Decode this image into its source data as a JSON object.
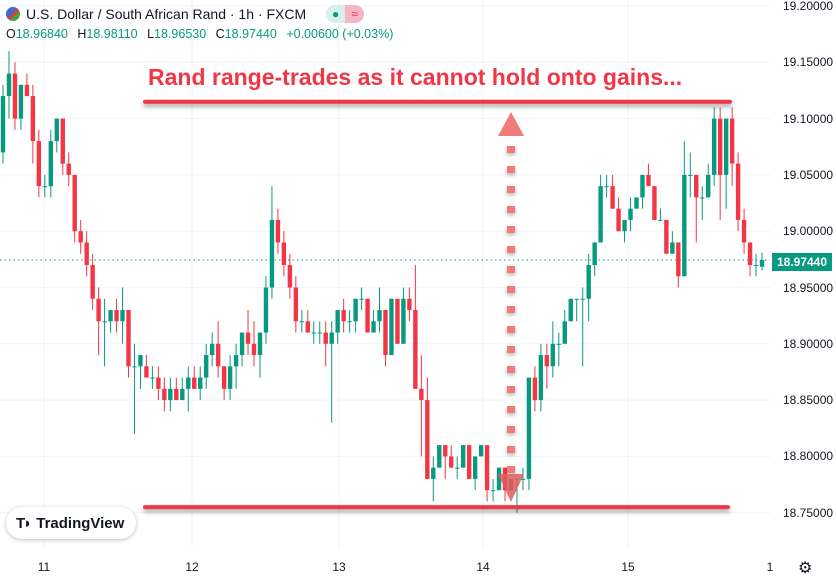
{
  "header": {
    "symbol_title": "U.S. Dollar / South African Rand · 1h · FXCM",
    "open_label": "O",
    "open": "18.96840",
    "high_label": "H",
    "high": "18.98110",
    "low_label": "L",
    "low": "18.96530",
    "close_label": "C",
    "close": "18.97440",
    "change": "+0.00600 (+0.03%)",
    "status_icon": "market-open-dot-icon",
    "pill_icon": "approx-icon"
  },
  "annotation": {
    "text": "Rand range-trades as it cannot hold onto gains...",
    "color": "#f23645"
  },
  "logo": {
    "text": "TradingView"
  },
  "colors": {
    "up": "#089981",
    "down": "#f23645",
    "grid": "#f0f3fa"
  },
  "chart_data": {
    "type": "candlestick",
    "ylim": [
      18.7,
      19.2
    ],
    "y_ticks": [
      "19.20000",
      "19.15000",
      "19.10000",
      "19.05000",
      "19.00000",
      "18.95000",
      "18.90000",
      "18.85000",
      "18.80000",
      "18.75000"
    ],
    "y_tick_values": [
      19.2,
      19.15,
      19.1,
      19.05,
      19.0,
      18.95,
      18.9,
      18.85,
      18.8,
      18.75
    ],
    "x_ticks": [
      "11",
      "12",
      "13",
      "14",
      "15",
      "1"
    ],
    "last_price": "18.97440",
    "resistance": 19.115,
    "support": 18.755,
    "ohlc": [
      [
        19.07,
        19.13,
        19.06,
        19.12
      ],
      [
        19.12,
        19.16,
        19.1,
        19.14
      ],
      [
        19.14,
        19.15,
        19.09,
        19.1
      ],
      [
        19.1,
        19.13,
        19.09,
        19.13
      ],
      [
        19.13,
        19.14,
        19.12,
        19.12
      ],
      [
        19.12,
        19.13,
        19.06,
        19.08
      ],
      [
        19.08,
        19.09,
        19.03,
        19.04
      ],
      [
        19.04,
        19.05,
        19.03,
        19.04
      ],
      [
        19.04,
        19.09,
        19.03,
        19.08
      ],
      [
        19.08,
        19.1,
        19.07,
        19.1
      ],
      [
        19.1,
        19.1,
        19.05,
        19.06
      ],
      [
        19.06,
        19.07,
        19.04,
        19.05
      ],
      [
        19.05,
        19.05,
        18.99,
        19.0
      ],
      [
        19.0,
        19.01,
        18.98,
        18.99
      ],
      [
        18.99,
        19.0,
        18.96,
        18.97
      ],
      [
        18.97,
        18.98,
        18.93,
        18.94
      ],
      [
        18.94,
        18.95,
        18.89,
        18.92
      ],
      [
        18.92,
        18.94,
        18.88,
        18.92
      ],
      [
        18.92,
        18.93,
        18.91,
        18.93
      ],
      [
        18.93,
        18.94,
        18.91,
        18.92
      ],
      [
        18.92,
        18.95,
        18.9,
        18.93
      ],
      [
        18.93,
        18.93,
        18.87,
        18.88
      ],
      [
        18.88,
        18.9,
        18.82,
        18.88
      ],
      [
        18.88,
        18.89,
        18.86,
        18.89
      ],
      [
        18.88,
        18.89,
        18.87,
        18.87
      ],
      [
        18.87,
        18.88,
        18.86,
        18.87
      ],
      [
        18.87,
        18.88,
        18.85,
        18.86
      ],
      [
        18.86,
        18.87,
        18.84,
        18.85
      ],
      [
        18.85,
        18.87,
        18.84,
        18.86
      ],
      [
        18.86,
        18.87,
        18.85,
        18.85
      ],
      [
        18.85,
        18.87,
        18.85,
        18.86
      ],
      [
        18.86,
        18.88,
        18.84,
        18.87
      ],
      [
        18.87,
        18.88,
        18.86,
        18.86
      ],
      [
        18.86,
        18.88,
        18.85,
        18.87
      ],
      [
        18.87,
        18.9,
        18.86,
        18.89
      ],
      [
        18.89,
        18.91,
        18.88,
        18.9
      ],
      [
        18.9,
        18.92,
        18.87,
        18.88
      ],
      [
        18.88,
        18.88,
        18.85,
        18.86
      ],
      [
        18.86,
        18.89,
        18.85,
        18.88
      ],
      [
        18.88,
        18.9,
        18.86,
        18.89
      ],
      [
        18.89,
        18.91,
        18.88,
        18.91
      ],
      [
        18.91,
        18.93,
        18.89,
        18.9
      ],
      [
        18.9,
        18.92,
        18.88,
        18.89
      ],
      [
        18.89,
        18.91,
        18.87,
        18.91
      ],
      [
        18.91,
        18.96,
        18.9,
        18.95
      ],
      [
        18.95,
        19.04,
        18.94,
        19.01
      ],
      [
        19.01,
        19.02,
        18.98,
        18.99
      ],
      [
        18.99,
        19.0,
        18.96,
        18.97
      ],
      [
        18.97,
        18.98,
        18.94,
        18.95
      ],
      [
        18.95,
        18.96,
        18.91,
        18.92
      ],
      [
        18.92,
        18.93,
        18.91,
        18.92
      ],
      [
        18.92,
        18.93,
        18.91,
        18.91
      ],
      [
        18.91,
        18.92,
        18.9,
        18.91
      ],
      [
        18.91,
        18.92,
        18.9,
        18.91
      ],
      [
        18.91,
        18.92,
        18.88,
        18.9
      ],
      [
        18.9,
        18.92,
        18.83,
        18.91
      ],
      [
        18.91,
        18.93,
        18.9,
        18.93
      ],
      [
        18.93,
        18.94,
        18.91,
        18.92
      ],
      [
        18.92,
        18.93,
        18.91,
        18.92
      ],
      [
        18.92,
        18.94,
        18.91,
        18.94
      ],
      [
        18.94,
        18.95,
        18.93,
        18.94
      ],
      [
        18.94,
        18.94,
        18.91,
        18.91
      ],
      [
        18.91,
        18.93,
        18.91,
        18.92
      ],
      [
        18.92,
        18.95,
        18.91,
        18.93
      ],
      [
        18.93,
        18.93,
        18.88,
        18.89
      ],
      [
        18.89,
        18.94,
        18.89,
        18.94
      ],
      [
        18.94,
        18.94,
        18.9,
        18.9
      ],
      [
        18.9,
        18.95,
        18.9,
        18.94
      ],
      [
        18.94,
        18.95,
        18.92,
        18.93
      ],
      [
        18.93,
        18.97,
        18.86,
        18.86
      ],
      [
        18.86,
        18.89,
        18.8,
        18.85
      ],
      [
        18.85,
        18.87,
        18.78,
        18.78
      ],
      [
        18.78,
        18.8,
        18.76,
        18.79
      ],
      [
        18.79,
        18.81,
        18.79,
        18.81
      ],
      [
        18.81,
        18.81,
        18.78,
        18.8
      ],
      [
        18.8,
        18.81,
        18.79,
        18.79
      ],
      [
        18.79,
        18.8,
        18.78,
        18.79
      ],
      [
        18.79,
        18.81,
        18.79,
        18.81
      ],
      [
        18.81,
        18.81,
        18.78,
        18.78
      ],
      [
        18.78,
        18.8,
        18.77,
        18.8
      ],
      [
        18.8,
        18.81,
        18.8,
        18.81
      ],
      [
        18.81,
        18.81,
        18.76,
        18.77
      ],
      [
        18.77,
        18.78,
        18.76,
        18.77
      ],
      [
        18.77,
        18.79,
        18.77,
        18.79
      ],
      [
        18.79,
        18.79,
        18.76,
        18.77
      ],
      [
        18.77,
        18.78,
        18.77,
        18.78
      ],
      [
        18.78,
        18.78,
        18.75,
        18.78
      ],
      [
        18.78,
        18.79,
        18.77,
        18.78
      ],
      [
        18.78,
        18.87,
        18.77,
        18.87
      ],
      [
        18.87,
        18.88,
        18.84,
        18.85
      ],
      [
        18.85,
        18.9,
        18.84,
        18.89
      ],
      [
        18.89,
        18.9,
        18.86,
        18.88
      ],
      [
        18.88,
        18.92,
        18.87,
        18.9
      ],
      [
        18.9,
        18.91,
        18.88,
        18.9
      ],
      [
        18.9,
        18.93,
        18.9,
        18.92
      ],
      [
        18.92,
        18.94,
        18.92,
        18.94
      ],
      [
        18.94,
        18.94,
        18.92,
        18.94
      ],
      [
        18.94,
        18.95,
        18.88,
        18.94
      ],
      [
        18.94,
        18.98,
        18.92,
        18.97
      ],
      [
        18.97,
        18.99,
        18.96,
        18.99
      ],
      [
        18.99,
        19.05,
        18.99,
        19.04
      ],
      [
        19.04,
        19.05,
        19.03,
        19.04
      ],
      [
        19.04,
        19.05,
        19.02,
        19.02
      ],
      [
        19.02,
        19.03,
        19.0,
        19.0
      ],
      [
        19.0,
        19.01,
        18.99,
        19.01
      ],
      [
        19.01,
        19.03,
        19.0,
        19.02
      ],
      [
        19.02,
        19.03,
        19.02,
        19.03
      ],
      [
        19.03,
        19.05,
        19.02,
        19.05
      ],
      [
        19.05,
        19.06,
        19.04,
        19.04
      ],
      [
        19.04,
        19.04,
        19.01,
        19.01
      ],
      [
        19.01,
        19.02,
        19.01,
        19.01
      ],
      [
        19.01,
        19.01,
        18.98,
        18.98
      ],
      [
        18.98,
        19.0,
        18.98,
        18.99
      ],
      [
        18.99,
        18.99,
        18.95,
        18.96
      ],
      [
        18.96,
        19.08,
        18.96,
        19.05
      ],
      [
        19.05,
        19.07,
        19.03,
        19.05
      ],
      [
        19.05,
        19.05,
        18.99,
        19.03
      ],
      [
        19.03,
        19.04,
        19.01,
        19.03
      ],
      [
        19.03,
        19.06,
        19.03,
        19.05
      ],
      [
        19.05,
        19.11,
        19.04,
        19.1
      ],
      [
        19.1,
        19.11,
        19.01,
        19.05
      ],
      [
        19.05,
        19.1,
        19.02,
        19.1
      ],
      [
        19.1,
        19.11,
        19.04,
        19.06
      ],
      [
        19.06,
        19.07,
        19.0,
        19.01
      ],
      [
        19.01,
        19.02,
        18.98,
        18.99
      ],
      [
        18.99,
        18.99,
        18.96,
        18.97
      ],
      [
        18.97,
        18.98,
        18.96,
        18.97
      ],
      [
        18.9684,
        18.9811,
        18.9653,
        18.9744
      ]
    ]
  }
}
